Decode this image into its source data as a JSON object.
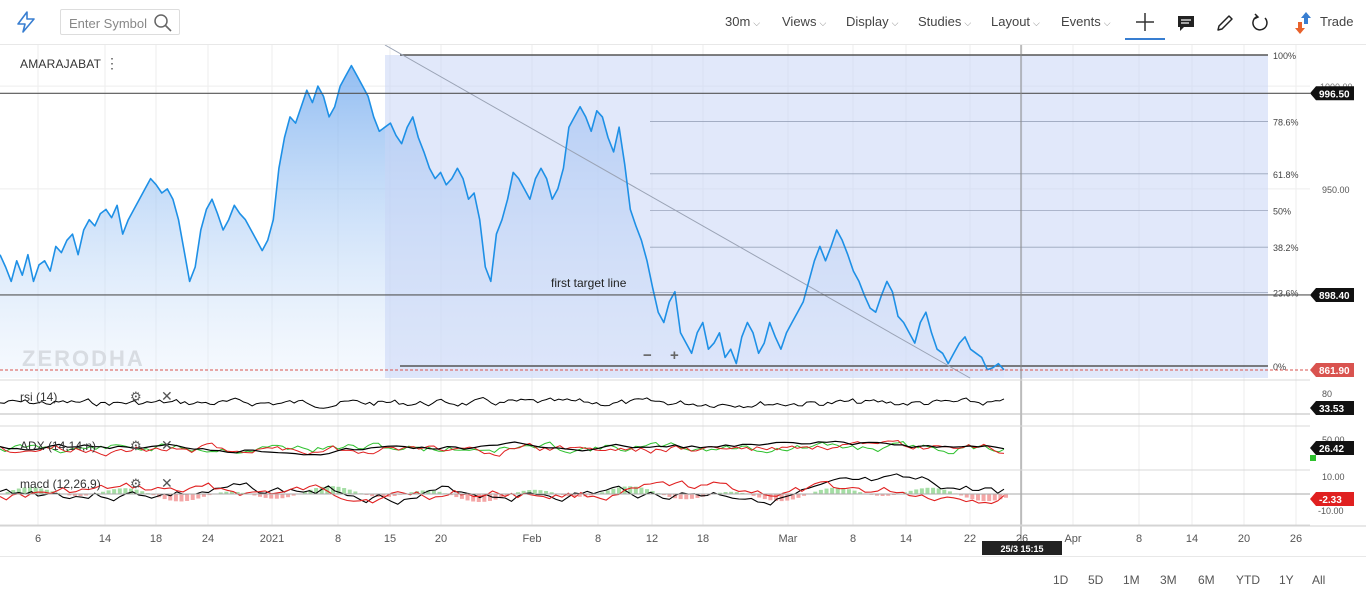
{
  "toolbar": {
    "search_placeholder": "Enter Symbol",
    "interval": "30m",
    "views": "Views",
    "display": "Display",
    "studies": "Studies",
    "layout": "Layout",
    "events": "Events",
    "trade": "Trade"
  },
  "symbol": "AMARAJABAT",
  "watermark": "ZERODHA",
  "zoom": {
    "minus": "−",
    "plus": "+"
  },
  "annotation": "first target line",
  "crosshair_time": "25/3 15:15",
  "ranges": [
    "1D",
    "5D",
    "1M",
    "3M",
    "6M",
    "YTD",
    "1Y",
    "All"
  ],
  "colors": {
    "price_line": "#1e90e6",
    "fib_fill": "#c8d6f5",
    "last_price_bg": "#d9534f",
    "tag_bg": "#111111",
    "adx_plus": "#2ec12e",
    "adx_minus": "#e02020",
    "macd_line": "#000000",
    "macd_signal": "#e02020"
  },
  "chart_data": {
    "type": "line",
    "title": "AMARAJABAT",
    "x_ticks": [
      "6",
      "14",
      "18",
      "24",
      "2021",
      "8",
      "15",
      "20",
      "Feb",
      "8",
      "12",
      "18",
      "Mar",
      "8",
      "14",
      "22",
      "26",
      "Apr",
      "8",
      "14",
      "20",
      "26"
    ],
    "y_ticks": [
      "1000.00",
      "950.00"
    ],
    "ylim": [
      858,
      1020
    ],
    "series": [
      {
        "values": [
          918,
          912,
          905,
          915,
          908,
          918,
          905,
          913,
          915,
          910,
          922,
          919,
          925,
          928,
          918,
          930,
          935,
          932,
          938,
          940,
          936,
          942,
          928,
          935,
          940,
          945,
          950,
          955,
          952,
          948,
          950,
          945,
          935,
          920,
          905,
          912,
          930,
          940,
          945,
          938,
          930,
          935,
          942,
          938,
          935,
          930,
          925,
          920,
          925,
          935,
          960,
          975,
          985,
          982,
          990,
          998,
          992,
          1000,
          995,
          985,
          990,
          1000,
          1005,
          1010,
          1005,
          1000,
          995,
          985,
          978,
          980,
          982,
          976,
          972,
          980,
          985,
          975,
          968,
          960,
          955,
          958,
          952,
          955,
          960,
          955,
          945,
          948,
          935,
          912,
          905,
          928,
          935,
          945,
          958,
          955,
          950,
          945,
          955,
          960,
          955,
          945,
          950,
          960,
          980,
          985,
          990,
          985,
          978,
          988,
          985,
          975,
          968,
          980,
          962,
          940,
          932,
          925,
          915,
          902,
          890,
          885,
          895,
          900,
          880,
          875,
          870,
          880,
          885,
          872,
          875,
          880,
          868,
          872,
          865,
          878,
          885,
          880,
          870,
          875,
          885,
          878,
          872,
          880,
          885,
          890,
          895,
          905,
          915,
          922,
          915,
          922,
          930,
          925,
          918,
          910,
          905,
          898,
          892,
          890,
          898,
          905,
          900,
          888,
          885,
          880,
          875,
          885,
          890,
          880,
          872,
          870,
          865,
          870,
          875,
          878,
          872,
          870,
          868,
          862,
          863,
          865,
          862
        ]
      }
    ],
    "current_price": "861.90",
    "price_tags": [
      "996.50",
      "898.40"
    ],
    "fib_levels": [
      "100%",
      "78.6%",
      "61.8%",
      "50%",
      "38.2%",
      "23.6%",
      "0%"
    ],
    "studies": [
      {
        "name": "rsi (14)",
        "axis_ticks": [
          "80"
        ],
        "last_value": "33.53"
      },
      {
        "name": "ADX (14,14,n)",
        "axis_ticks": [
          "50.00"
        ],
        "last_value": "26.42"
      },
      {
        "name": "macd (12,26,9)",
        "axis_ticks": [
          "10.00",
          "-10.00"
        ],
        "last_value": "-2.33"
      }
    ]
  }
}
